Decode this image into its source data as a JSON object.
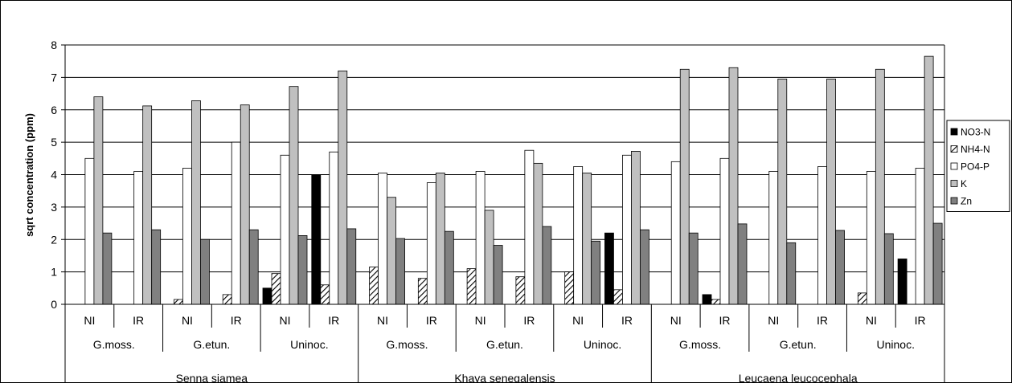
{
  "chart_data": {
    "type": "bar",
    "ylabel": "sqrt concentration (ppm)",
    "ylim": [
      0,
      8
    ],
    "yticks": [
      "0",
      "1",
      "2",
      "3",
      "4",
      "5",
      "6",
      "7",
      "8"
    ],
    "grid": true,
    "legend_position": "right",
    "categories": [
      {
        "treatment": "NI",
        "inoculum": "G.moss.",
        "species": "Senna siamea"
      },
      {
        "treatment": "IR",
        "inoculum": "G.moss.",
        "species": "Senna siamea"
      },
      {
        "treatment": "NI",
        "inoculum": "G.etun.",
        "species": "Senna siamea"
      },
      {
        "treatment": "IR",
        "inoculum": "G.etun.",
        "species": "Senna siamea"
      },
      {
        "treatment": "NI",
        "inoculum": "Uninoc.",
        "species": "Senna siamea"
      },
      {
        "treatment": "IR",
        "inoculum": "Uninoc.",
        "species": "Senna siamea"
      },
      {
        "treatment": "NI",
        "inoculum": "G.moss.",
        "species": "Khaya senegalensis"
      },
      {
        "treatment": "IR",
        "inoculum": "G.moss.",
        "species": "Khaya senegalensis"
      },
      {
        "treatment": "NI",
        "inoculum": "G.etun.",
        "species": "Khaya senegalensis"
      },
      {
        "treatment": "IR",
        "inoculum": "G.etun.",
        "species": "Khaya senegalensis"
      },
      {
        "treatment": "NI",
        "inoculum": "Uninoc.",
        "species": "Khaya senegalensis"
      },
      {
        "treatment": "IR",
        "inoculum": "Uninoc.",
        "species": "Khaya senegalensis"
      },
      {
        "treatment": "NI",
        "inoculum": "G.moss.",
        "species": "Leucaena leucocephala"
      },
      {
        "treatment": "IR",
        "inoculum": "G.moss.",
        "species": "Leucaena leucocephala"
      },
      {
        "treatment": "NI",
        "inoculum": "G.etun.",
        "species": "Leucaena leucocephala"
      },
      {
        "treatment": "IR",
        "inoculum": "G.etun.",
        "species": "Leucaena leucocephala"
      },
      {
        "treatment": "NI",
        "inoculum": "Uninoc.",
        "species": "Leucaena leucocephala"
      },
      {
        "treatment": "IR",
        "inoculum": "Uninoc.",
        "species": "Leucaena leucocephala"
      }
    ],
    "inoculum_groups": [
      "G.moss.",
      "G.etun.",
      "Uninoc.",
      "G.moss.",
      "G.etun.",
      "Uninoc.",
      "G.moss.",
      "G.etun.",
      "Uninoc."
    ],
    "species_groups": [
      "Senna siamea",
      "Khaya senegalensis",
      "Leucaena leucocephala"
    ],
    "series": [
      {
        "name": "NO3-N",
        "fill": "#000000",
        "pattern": "solid",
        "values": [
          0,
          0,
          0,
          0,
          0.5,
          4.0,
          0,
          0,
          0,
          0,
          0,
          2.2,
          0,
          0.3,
          0,
          0,
          0,
          1.4
        ]
      },
      {
        "name": "NH4-N",
        "fill": "#ffffff",
        "pattern": "diagonal-hatch",
        "values": [
          0,
          0,
          0.15,
          0.3,
          0.95,
          0.6,
          1.15,
          0.8,
          1.1,
          0.85,
          1.0,
          0.45,
          0,
          0.15,
          0,
          0,
          0.35,
          0
        ]
      },
      {
        "name": "PO4-P",
        "fill": "#ffffff",
        "pattern": "solid",
        "values": [
          4.5,
          4.1,
          4.2,
          5.0,
          4.6,
          4.7,
          4.05,
          3.75,
          4.1,
          4.75,
          4.25,
          4.6,
          4.4,
          4.5,
          4.1,
          4.25,
          4.1,
          4.2
        ]
      },
      {
        "name": "K",
        "fill": "#c0c0c0",
        "pattern": "solid",
        "values": [
          6.4,
          6.12,
          6.28,
          6.15,
          6.72,
          7.2,
          3.3,
          4.05,
          2.9,
          4.35,
          4.05,
          4.72,
          7.25,
          7.3,
          6.95,
          6.95,
          7.25,
          7.65
        ]
      },
      {
        "name": "Zn",
        "fill": "#808080",
        "pattern": "solid",
        "values": [
          2.2,
          2.3,
          2.0,
          2.3,
          2.12,
          2.33,
          2.03,
          2.25,
          1.82,
          2.4,
          1.95,
          2.3,
          2.2,
          2.48,
          1.9,
          2.28,
          2.18,
          2.5
        ]
      }
    ]
  }
}
